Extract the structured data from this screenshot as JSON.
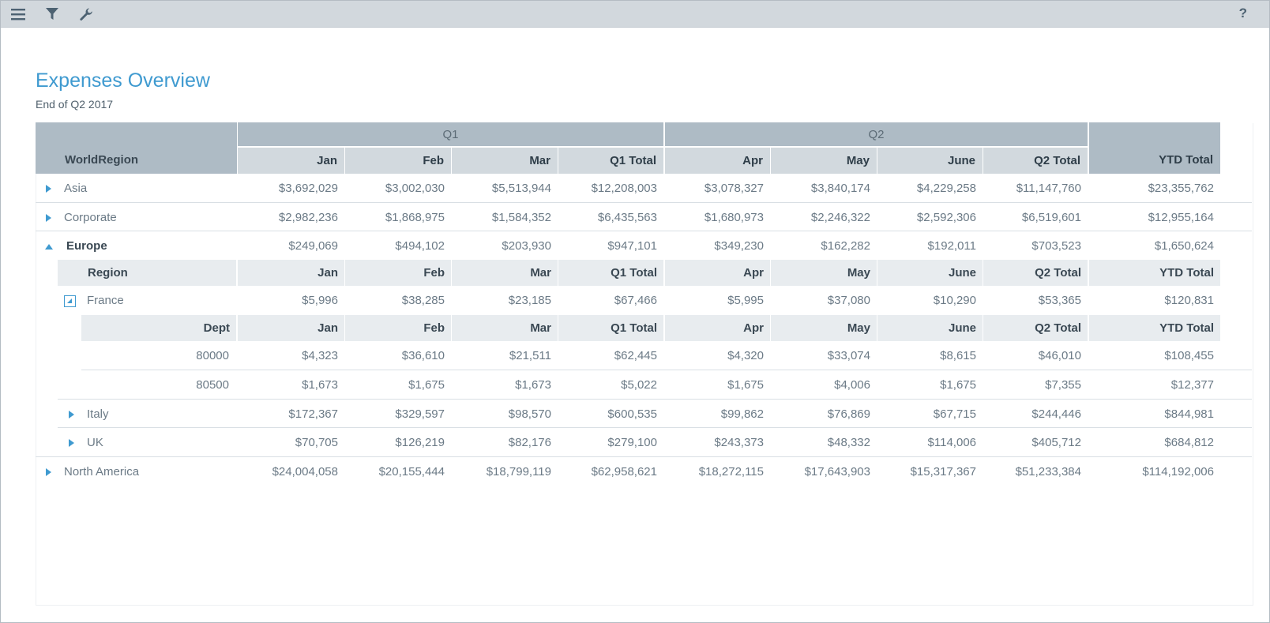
{
  "toolbar": {
    "menu_icon": "hamburger-menu-icon",
    "filter_icon": "filter-icon",
    "settings_icon": "wrench-icon",
    "help_label": "?"
  },
  "report": {
    "title": "Expenses Overview",
    "subtitle": "End of Q2 2017"
  },
  "header": {
    "row_label": "WorldRegion",
    "q1": "Q1",
    "q2": "Q2",
    "months": [
      "Jan",
      "Feb",
      "Mar",
      "Q1 Total",
      "Apr",
      "May",
      "June",
      "Q2 Total"
    ],
    "ytd": "YTD Total"
  },
  "rows": [
    {
      "label": "Asia",
      "values": [
        "$3,692,029",
        "$3,002,030",
        "$5,513,944",
        "$12,208,003",
        "$3,078,327",
        "$3,840,174",
        "$4,229,258",
        "$11,147,760",
        "$23,355,762"
      ]
    },
    {
      "label": "Corporate",
      "values": [
        "$2,982,236",
        "$1,868,975",
        "$1,584,352",
        "$6,435,563",
        "$1,680,973",
        "$2,246,322",
        "$2,592,306",
        "$6,519,601",
        "$12,955,164"
      ]
    },
    {
      "label": "Europe",
      "values": [
        "$249,069",
        "$494,102",
        "$203,930",
        "$947,101",
        "$349,230",
        "$162,282",
        "$192,011",
        "$703,523",
        "$1,650,624"
      ]
    },
    {
      "label": "North America",
      "values": [
        "$24,004,058",
        "$20,155,444",
        "$18,799,119",
        "$62,958,621",
        "$18,272,115",
        "$17,643,903",
        "$15,317,367",
        "$51,233,384",
        "$114,192,006"
      ]
    }
  ],
  "europe_sub": {
    "header": [
      "Region",
      "Jan",
      "Feb",
      "Mar",
      "Q1 Total",
      "Apr",
      "May",
      "June",
      "Q2 Total",
      "YTD Total"
    ],
    "rows": [
      {
        "label": "France",
        "values": [
          "$5,996",
          "$38,285",
          "$23,185",
          "$67,466",
          "$5,995",
          "$37,080",
          "$10,290",
          "$53,365",
          "$120,831"
        ]
      },
      {
        "label": "Italy",
        "values": [
          "$172,367",
          "$329,597",
          "$98,570",
          "$600,535",
          "$99,862",
          "$76,869",
          "$67,715",
          "$244,446",
          "$844,981"
        ]
      },
      {
        "label": "UK",
        "values": [
          "$70,705",
          "$126,219",
          "$82,176",
          "$279,100",
          "$243,373",
          "$48,332",
          "$114,006",
          "$405,712",
          "$684,812"
        ]
      }
    ]
  },
  "france_sub": {
    "header": [
      "Dept",
      "Jan",
      "Feb",
      "Mar",
      "Q1 Total",
      "Apr",
      "May",
      "June",
      "Q2 Total",
      "YTD Total"
    ],
    "rows": [
      {
        "label": "80000",
        "values": [
          "$4,323",
          "$36,610",
          "$21,511",
          "$62,445",
          "$4,320",
          "$33,074",
          "$8,615",
          "$46,010",
          "$108,455"
        ]
      },
      {
        "label": "80500",
        "values": [
          "$1,673",
          "$1,675",
          "$1,673",
          "$5,022",
          "$1,675",
          "$4,006",
          "$1,675",
          "$7,355",
          "$12,377"
        ]
      }
    ]
  }
}
